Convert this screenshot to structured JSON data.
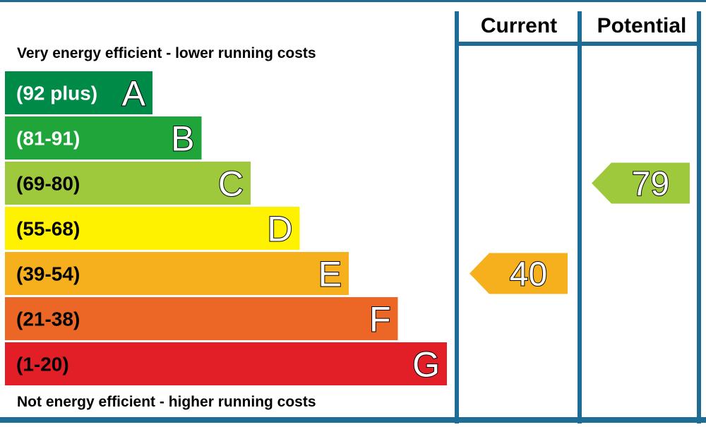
{
  "chart_data": {
    "type": "bar",
    "headers": {
      "current": "Current",
      "potential": "Potential"
    },
    "top_caption": "Very energy efficient - lower running costs",
    "bottom_caption": "Not energy efficient - higher running costs",
    "bands": [
      {
        "letter": "A",
        "range": "(92 plus)",
        "min": 92,
        "max": 100,
        "color": "#008a47",
        "text_color": "#ffffff"
      },
      {
        "letter": "B",
        "range": "(81-91)",
        "min": 81,
        "max": 91,
        "color": "#1fa53a",
        "text_color": "#ffffff"
      },
      {
        "letter": "C",
        "range": "(69-80)",
        "min": 69,
        "max": 80,
        "color": "#9ec93c",
        "text_color": "#000000"
      },
      {
        "letter": "D",
        "range": "(55-68)",
        "min": 55,
        "max": 68,
        "color": "#fff200",
        "text_color": "#000000"
      },
      {
        "letter": "E",
        "range": "(39-54)",
        "min": 39,
        "max": 54,
        "color": "#f6b01e",
        "text_color": "#000000"
      },
      {
        "letter": "F",
        "range": "(21-38)",
        "min": 21,
        "max": 38,
        "color": "#ec6726",
        "text_color": "#000000"
      },
      {
        "letter": "G",
        "range": "(1-20)",
        "min": 1,
        "max": 20,
        "color": "#e21f26",
        "text_color": "#000000"
      }
    ],
    "ratings": {
      "current": {
        "value": 40,
        "band": "E",
        "color": "#f6b01e"
      },
      "potential": {
        "value": 79,
        "band": "C",
        "color": "#9ec93c"
      }
    },
    "colors": {
      "frame": "#1c6c96",
      "background": "#ffffff"
    }
  }
}
